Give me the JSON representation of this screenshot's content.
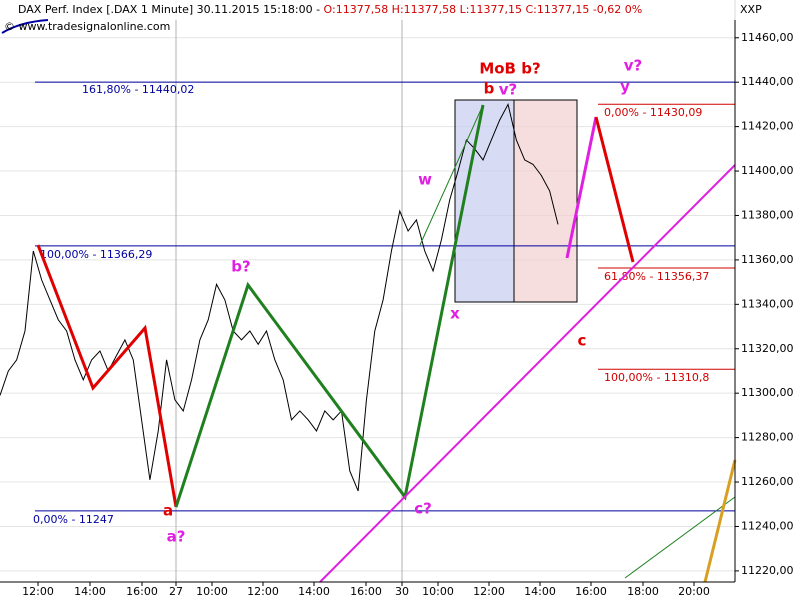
{
  "chart_data": {
    "type": "line",
    "title": "DAX Perf. Index [.DAX  1 Minute] 30.11.2015 15:18:00 - ",
    "ohlc": "O:11377,58  H:11377,58  L:11377,15  C:11377,15  -0,62 0%",
    "watermark": "© www.tradesignalonline.com",
    "axis_label": "XXP",
    "color": "#000000",
    "xtick_labels": [
      "12:00",
      "14:00",
      "16:00",
      "27",
      "10:00",
      "12:00",
      "14:00",
      "16:00",
      "30",
      "10:00",
      "12:00",
      "14:00",
      "16:00",
      "18:00",
      "20:00"
    ],
    "values": [
      11299,
      11310,
      11315,
      11328,
      11364,
      11351,
      11342,
      11333,
      11328,
      11315,
      11306,
      11315,
      11319,
      11310,
      11317,
      11324,
      11315,
      11288,
      11261,
      11283,
      11315,
      11297,
      11292,
      11306,
      11324,
      11333,
      11349,
      11342,
      11328,
      11324,
      11328,
      11322,
      11328,
      11315,
      11306,
      11288,
      11292,
      11288,
      11283,
      11292,
      11288,
      11292,
      11265,
      11256,
      11297,
      11328,
      11342,
      11364,
      11382,
      11373,
      11378,
      11364,
      11355,
      11369,
      11387,
      11400,
      11414,
      11410,
      11405,
      11414,
      11423,
      11430,
      11414,
      11405,
      11403,
      11398,
      11391,
      11376
    ],
    "ylim": [
      11215,
      11477
    ],
    "yticks": [
      {
        "value": 11220,
        "label": "11220,00"
      },
      {
        "value": 11240,
        "label": "11240,00"
      },
      {
        "value": 11260,
        "label": "11260,00"
      },
      {
        "value": 11280,
        "label": "11280,00"
      },
      {
        "value": 11300,
        "label": "11300,00"
      },
      {
        "value": 11320,
        "label": "11320,00"
      },
      {
        "value": 11340,
        "label": "11340,00"
      },
      {
        "value": 11360,
        "label": "11360,00"
      },
      {
        "value": 11380,
        "label": "11380,00"
      },
      {
        "value": 11400,
        "label": "11400,00"
      },
      {
        "value": 11420,
        "label": "11420,00"
      },
      {
        "value": 11440,
        "label": "11440,00"
      },
      {
        "value": 11460,
        "label": "11460,00"
      }
    ],
    "grid": true,
    "levels": [
      {
        "label": "161,80% - 11440,02",
        "value": 11440.02,
        "color": "#0000a0"
      },
      {
        "label": "100,00% - 11366,29",
        "value": 11366.29,
        "color": "#0000a0"
      },
      {
        "label": "0,00% - 11247",
        "value": 11247,
        "color": "#0000a0"
      },
      {
        "label": "0,00% - 11430,09",
        "value": 11430.09,
        "color": "#d00000"
      },
      {
        "label": "61,80% - 11356,37",
        "value": 11356.37,
        "color": "#d00000"
      },
      {
        "label": "100,00% - 11310,8",
        "value": 11310.8,
        "color": "#d00000"
      }
    ],
    "annotations": [
      {
        "text": "a",
        "color": "#e00000"
      },
      {
        "text": "a?",
        "color": "#e020e0"
      },
      {
        "text": "b?",
        "color": "#e020e0"
      },
      {
        "text": "w",
        "color": "#e020e0"
      },
      {
        "text": "x",
        "color": "#e020e0"
      },
      {
        "text": "c?",
        "color": "#e020e0"
      },
      {
        "text": "b",
        "color": "#e00000"
      },
      {
        "text": "MoB b?",
        "color": "#e00000"
      },
      {
        "text": "v?",
        "color": "#e020e0"
      },
      {
        "text": "v?",
        "color": "#e020e0"
      },
      {
        "text": "y",
        "color": "#e020e0"
      },
      {
        "text": "c",
        "color": "#e00000"
      }
    ]
  }
}
